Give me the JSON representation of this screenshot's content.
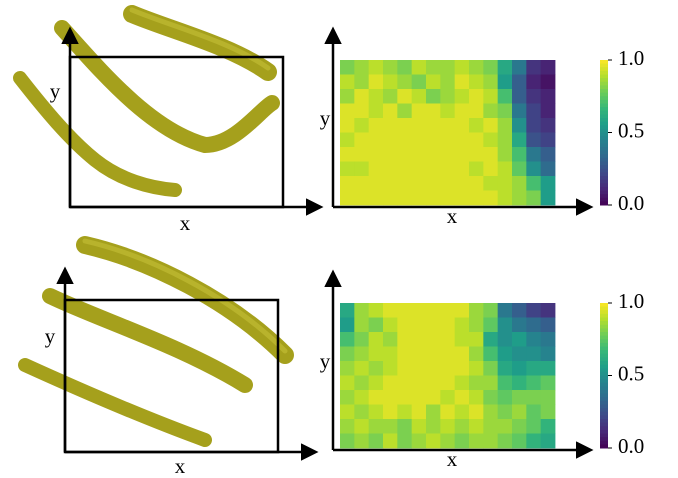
{
  "panels": [
    {
      "render": {
        "xlabel": "x",
        "ylabel": "y"
      },
      "heatmap": {
        "type": "heatmap",
        "xlabel": "x",
        "ylabel": "y",
        "colormap": "viridis",
        "zlim": [
          0,
          1
        ],
        "colorbar_ticks": [
          {
            "value": 0,
            "label": "0.0"
          },
          {
            "value": 0.5,
            "label": "0.5"
          },
          {
            "value": 1,
            "label": "1.0"
          }
        ],
        "values": [
          [
            0.8,
            0.85,
            0.9,
            0.85,
            0.8,
            0.9,
            0.85,
            0.85,
            0.9,
            0.85,
            0.8,
            0.6,
            0.4,
            0.15,
            0.1
          ],
          [
            0.9,
            0.85,
            0.95,
            0.9,
            0.85,
            0.8,
            0.9,
            0.85,
            0.95,
            0.9,
            0.85,
            0.55,
            0.3,
            0.1,
            0.05
          ],
          [
            0.85,
            0.95,
            0.9,
            0.85,
            0.95,
            0.9,
            0.8,
            0.85,
            0.9,
            0.95,
            0.9,
            0.7,
            0.3,
            0.15,
            0.1
          ],
          [
            0.95,
            0.95,
            0.9,
            0.95,
            0.85,
            0.95,
            0.95,
            0.9,
            0.95,
            0.95,
            0.85,
            0.8,
            0.4,
            0.2,
            0.1
          ],
          [
            0.95,
            0.9,
            0.95,
            0.95,
            0.95,
            0.95,
            0.95,
            0.95,
            0.95,
            0.9,
            0.95,
            0.85,
            0.5,
            0.2,
            0.15
          ],
          [
            0.9,
            0.95,
            0.95,
            0.95,
            0.95,
            0.95,
            0.95,
            0.95,
            0.95,
            0.95,
            0.9,
            0.85,
            0.6,
            0.25,
            0.2
          ],
          [
            0.95,
            0.95,
            0.95,
            0.95,
            0.95,
            0.95,
            0.95,
            0.95,
            0.95,
            0.95,
            0.95,
            0.85,
            0.7,
            0.4,
            0.3
          ],
          [
            0.9,
            0.9,
            0.95,
            0.95,
            0.95,
            0.95,
            0.95,
            0.95,
            0.95,
            0.9,
            0.95,
            0.9,
            0.75,
            0.5,
            0.35
          ],
          [
            0.95,
            0.95,
            0.95,
            0.95,
            0.95,
            0.95,
            0.95,
            0.95,
            0.95,
            0.95,
            0.9,
            0.9,
            0.85,
            0.7,
            0.55
          ],
          [
            0.95,
            0.95,
            0.95,
            0.95,
            0.95,
            0.95,
            0.95,
            0.95,
            0.95,
            0.95,
            0.95,
            0.9,
            0.85,
            0.8,
            0.55
          ]
        ]
      }
    },
    {
      "render": {
        "xlabel": "x",
        "ylabel": "y"
      },
      "heatmap": {
        "type": "heatmap",
        "xlabel": "x",
        "ylabel": "y",
        "colormap": "viridis",
        "zlim": [
          0,
          1
        ],
        "colorbar_ticks": [
          {
            "value": 0,
            "label": "0.0"
          },
          {
            "value": 0.5,
            "label": "0.5"
          },
          {
            "value": 1,
            "label": "1.0"
          }
        ],
        "values": [
          [
            0.6,
            0.85,
            0.9,
            0.95,
            0.95,
            0.95,
            0.95,
            0.95,
            0.95,
            0.85,
            0.8,
            0.4,
            0.3,
            0.2,
            0.15
          ],
          [
            0.55,
            0.85,
            0.8,
            0.9,
            0.95,
            0.95,
            0.95,
            0.95,
            0.9,
            0.85,
            0.75,
            0.5,
            0.4,
            0.35,
            0.3
          ],
          [
            0.7,
            0.8,
            0.9,
            0.85,
            0.95,
            0.95,
            0.95,
            0.95,
            0.9,
            0.9,
            0.6,
            0.5,
            0.55,
            0.45,
            0.4
          ],
          [
            0.8,
            0.85,
            0.9,
            0.9,
            0.95,
            0.95,
            0.95,
            0.95,
            0.95,
            0.85,
            0.7,
            0.55,
            0.5,
            0.5,
            0.45
          ],
          [
            0.85,
            0.9,
            0.85,
            0.9,
            0.95,
            0.95,
            0.95,
            0.95,
            0.95,
            0.9,
            0.8,
            0.6,
            0.55,
            0.6,
            0.6
          ],
          [
            0.9,
            0.85,
            0.9,
            0.95,
            0.95,
            0.95,
            0.95,
            0.95,
            0.9,
            0.85,
            0.85,
            0.7,
            0.65,
            0.7,
            0.75
          ],
          [
            0.85,
            0.9,
            0.95,
            0.95,
            0.95,
            0.95,
            0.95,
            0.9,
            0.95,
            0.9,
            0.8,
            0.75,
            0.8,
            0.8,
            0.8
          ],
          [
            0.9,
            0.85,
            0.9,
            0.95,
            0.9,
            0.95,
            0.85,
            0.95,
            0.9,
            0.95,
            0.85,
            0.8,
            0.85,
            0.75,
            0.8
          ],
          [
            0.85,
            0.9,
            0.85,
            0.85,
            0.8,
            0.9,
            0.85,
            0.9,
            0.85,
            0.9,
            0.85,
            0.85,
            0.8,
            0.75,
            0.65
          ],
          [
            0.8,
            0.85,
            0.8,
            0.9,
            0.8,
            0.85,
            0.9,
            0.85,
            0.8,
            0.85,
            0.85,
            0.8,
            0.75,
            0.65,
            0.6
          ]
        ]
      }
    }
  ]
}
